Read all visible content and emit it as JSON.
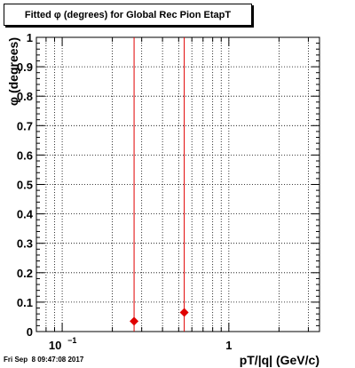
{
  "title": "Fitted φ (degrees) for Global Rec Pion EtapT",
  "timestamp": "Fri Sep  8 09:47:08 2017",
  "chart_data": {
    "type": "scatter",
    "title": "Fitted φ (degrees) for Global Rec Pion EtapT",
    "xlabel": "pT/|q| (GeV/c)",
    "ylabel": "φ (degrees)",
    "x_scale": "log",
    "xlim": [
      0.07,
      3.5
    ],
    "ylim": [
      0,
      1
    ],
    "grid": true,
    "y_ticks": [
      0,
      0.1,
      0.2,
      0.3,
      0.4,
      0.5,
      0.6,
      0.7,
      0.8,
      0.9,
      1
    ],
    "y_tick_labels": [
      "0",
      "0.1",
      "0.2",
      "0.3",
      "0.4",
      "0.5",
      "0.6",
      "0.7",
      "0.8",
      "0.9",
      "1"
    ],
    "x_major_ticks": [
      0.1,
      1
    ],
    "x_tick_labels": [
      "10^{-1}",
      "1"
    ],
    "marker_color": "#e00000",
    "points": [
      {
        "x": 0.27,
        "y": 0.035,
        "err": 1.0
      },
      {
        "x": 0.54,
        "y": 0.065,
        "err": 1.0
      }
    ]
  }
}
